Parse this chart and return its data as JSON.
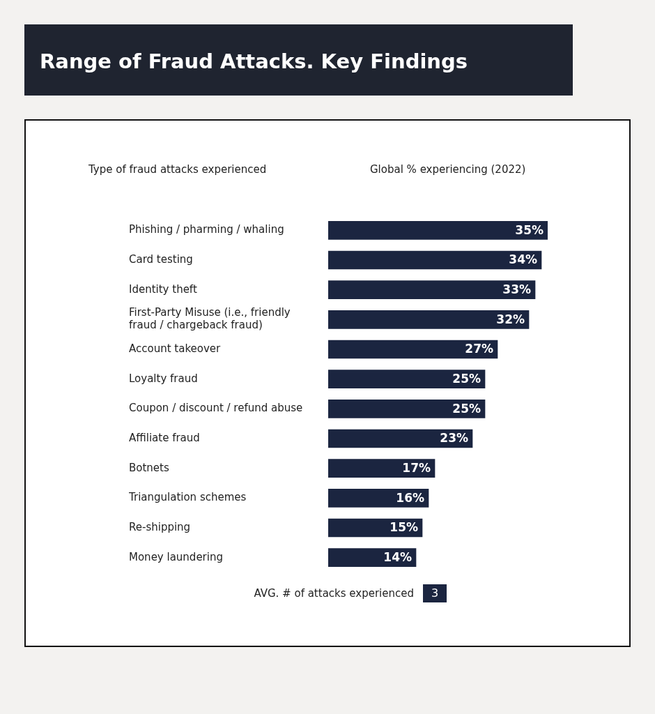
{
  "chart_data": {
    "type": "bar",
    "orientation": "horizontal",
    "title": "Range of Fraud Attacks. Key Findings",
    "ylabel": "Type of fraud attacks experienced",
    "xlabel": "Global % experiencing (2022)",
    "categories": [
      "Phishing / pharming / whaling",
      "Card testing",
      "Identity theft",
      "First-Party Misuse (i.e., friendly fraud / chargeback fraud)",
      "Account takeover",
      "Loyalty fraud",
      "Coupon / discount / refund abuse",
      "Affiliate fraud",
      "Botnets",
      "Triangulation schemes",
      "Re-shipping",
      "Money laundering"
    ],
    "values": [
      35,
      34,
      33,
      32,
      27,
      25,
      25,
      23,
      17,
      16,
      15,
      14
    ],
    "value_labels": [
      "35%",
      "34%",
      "33%",
      "32%",
      "27%",
      "25%",
      "25%",
      "23%",
      "17%",
      "16%",
      "15%",
      "14%"
    ],
    "color": "#1b2540",
    "annotations": [
      "AVG. # of attacks experienced",
      "3"
    ]
  }
}
